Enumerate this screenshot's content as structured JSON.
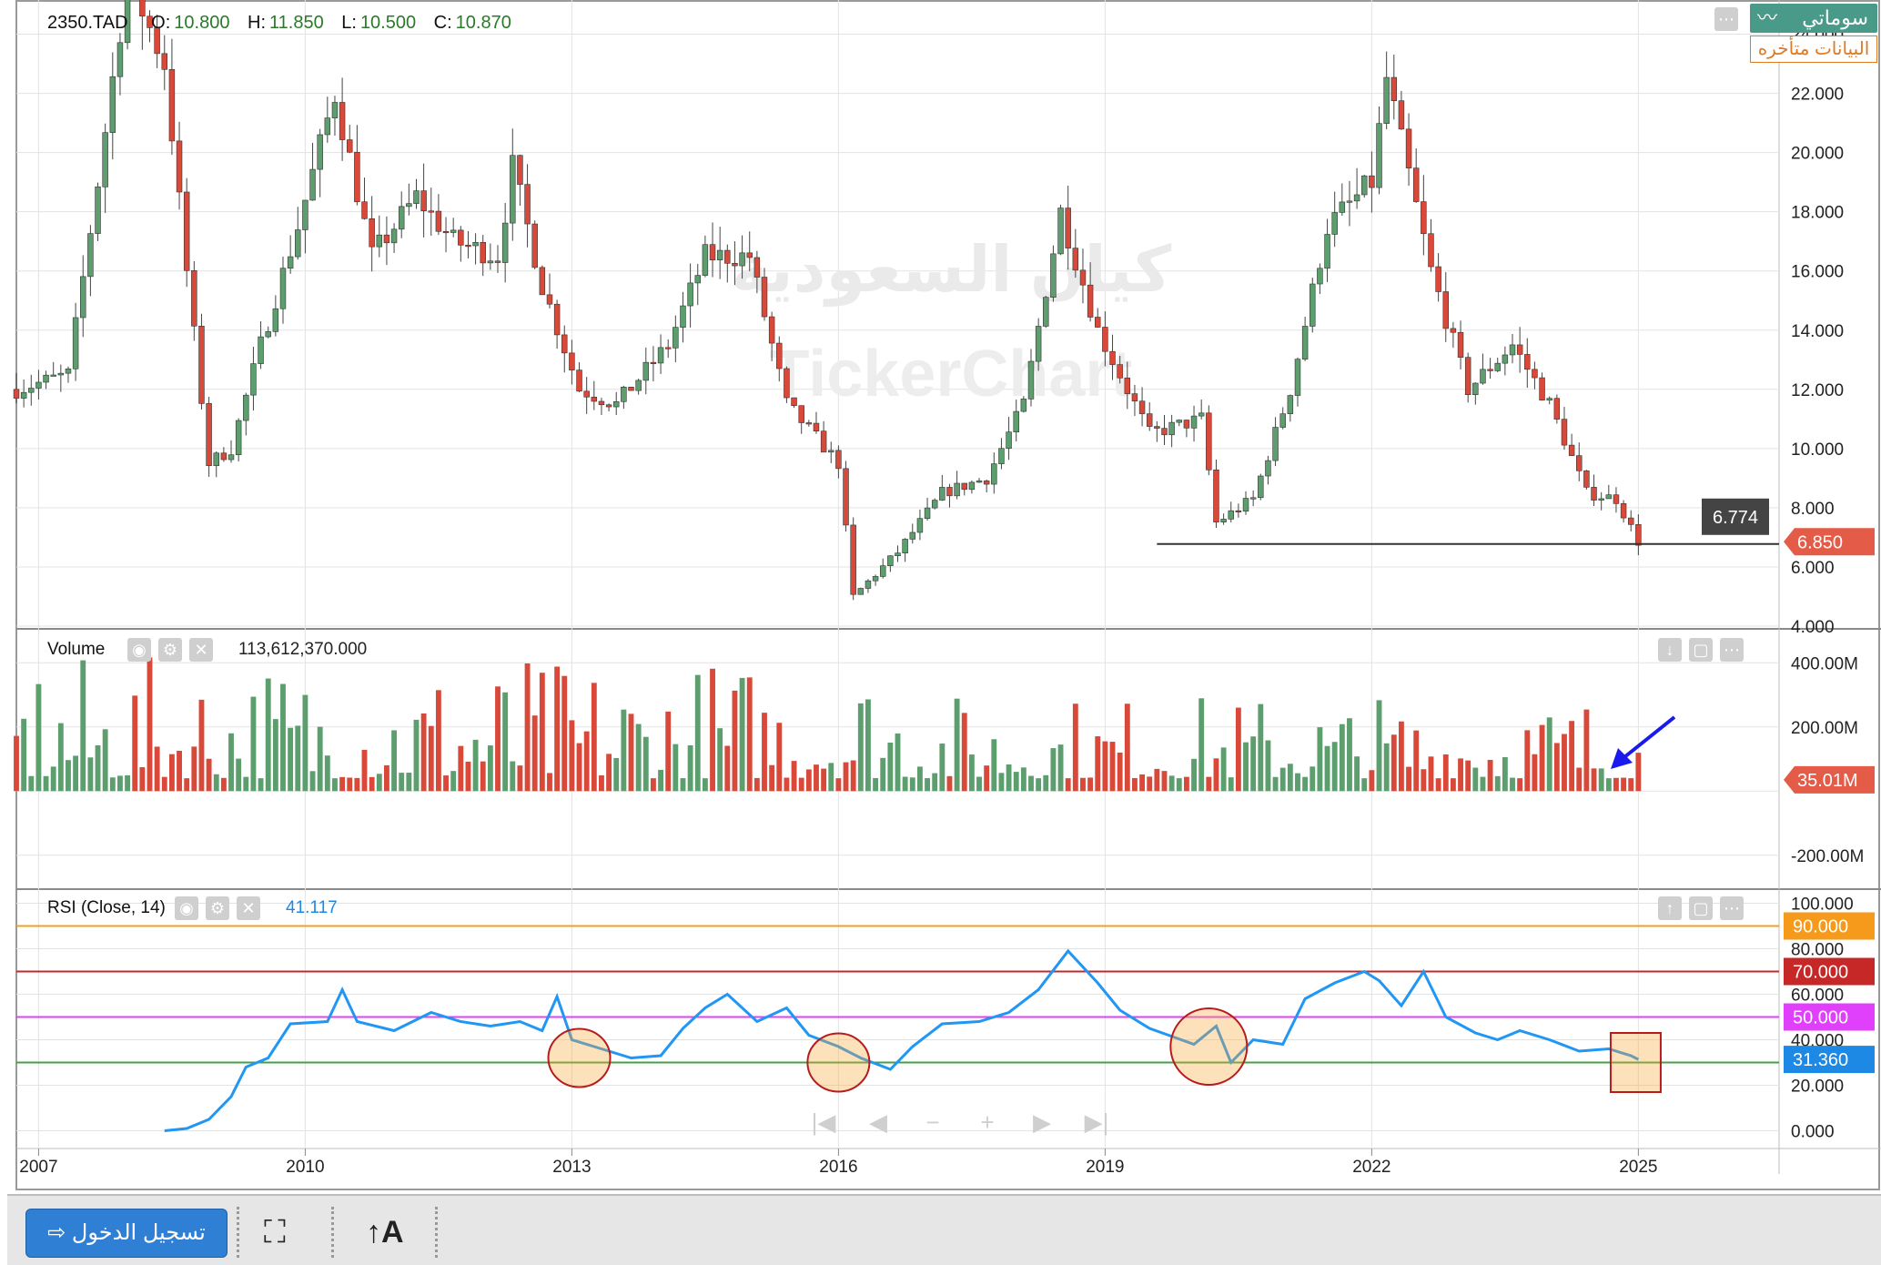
{
  "header": {
    "symbol": "2350.TAD",
    "ohlc": [
      {
        "key": "O:",
        "value": "10.800"
      },
      {
        "key": "H:",
        "value": "11.850"
      },
      {
        "key": "L:",
        "value": "10.500"
      },
      {
        "key": "C:",
        "value": "10.870"
      }
    ]
  },
  "brand": {
    "name": "سوماتي",
    "delayed": "البيانات متأخره"
  },
  "watermark": {
    "arabic": "كيان السعودية",
    "latin": "TickerChart"
  },
  "colors": {
    "up": "#5c9e6e",
    "down": "#d8493a",
    "rsi": "#2196f3",
    "grid": "#e3e3e3"
  },
  "price_panel": {
    "axis_labels": [
      "24.000",
      "22.000",
      "20.000",
      "18.000",
      "16.000",
      "14.000",
      "12.000",
      "10.000",
      "8.000",
      "6.000",
      "4.000"
    ],
    "last_price_label": "6.850",
    "support_label": "6.774",
    "last_price_color": "#e45b48",
    "support_label_color": "#444444"
  },
  "volume_panel": {
    "label": "Volume",
    "value": "113,612,370.000",
    "axis_labels": [
      "400.00M",
      "200.00M",
      "-200.00M"
    ],
    "last_label": "35.01M"
  },
  "rsi_panel": {
    "label": "RSI  (Close, 14)",
    "value": "41.117",
    "axis_labels": [
      "100.000",
      "80.000",
      "60.000",
      "40.000",
      "20.000",
      "0.000"
    ],
    "levels": [
      {
        "value": 90,
        "label": "90.000",
        "color": "#f0a020",
        "bg": "#f59a1a"
      },
      {
        "value": 70,
        "label": "70.000",
        "color": "#c62828",
        "bg": "#c62828"
      },
      {
        "value": 50,
        "label": "50.000",
        "color": "#e040fb",
        "bg": "#e040fb"
      },
      {
        "value": 30,
        "label": "31.360",
        "color": "#43a047",
        "bg": "#1e88e5"
      }
    ]
  },
  "x_axis": {
    "labels": [
      {
        "year": 2007,
        "label": "2007"
      },
      {
        "year": 2010,
        "label": "2010"
      },
      {
        "year": 2013,
        "label": "2013"
      },
      {
        "year": 2016,
        "label": "2016"
      },
      {
        "year": 2019,
        "label": "2019"
      },
      {
        "year": 2022,
        "label": "2022"
      },
      {
        "year": 2025,
        "label": "2025"
      }
    ]
  },
  "chart_data": [
    {
      "type": "candlestick",
      "title": "2350.TAD",
      "ylim": [
        4,
        25
      ],
      "x_range": [
        "2006-10",
        "2026-08"
      ],
      "anchors": [
        [
          "2006-10",
          12.0
        ],
        [
          "2007-05",
          12.5
        ],
        [
          "2007-09",
          19
        ],
        [
          "2008-01",
          26
        ],
        [
          "2008-06",
          23
        ],
        [
          "2008-09",
          16
        ],
        [
          "2008-12",
          9.5
        ],
        [
          "2009-03",
          10.0
        ],
        [
          "2009-07",
          13.5
        ],
        [
          "2009-12",
          17.5
        ],
        [
          "2010-05",
          22.0
        ],
        [
          "2010-10",
          16.5
        ],
        [
          "2011-04",
          18.5
        ],
        [
          "2011-09",
          17.0
        ],
        [
          "2012-03",
          16.5
        ],
        [
          "2012-05",
          19.5
        ],
        [
          "2012-09",
          15.5
        ],
        [
          "2013-02",
          12.0
        ],
        [
          "2013-07",
          11.5
        ],
        [
          "2014-02",
          13.5
        ],
        [
          "2014-07",
          16.5
        ],
        [
          "2015-01",
          16.5
        ],
        [
          "2015-06",
          11.5
        ],
        [
          "2016-01",
          9.5
        ],
        [
          "2016-03",
          5.0
        ],
        [
          "2016-09",
          6.5
        ],
        [
          "2017-03",
          8.5
        ],
        [
          "2017-09",
          9.0
        ],
        [
          "2018-02",
          11.5
        ],
        [
          "2018-07",
          18.0
        ],
        [
          "2018-12",
          14.0
        ],
        [
          "2019-07",
          10.5
        ],
        [
          "2020-02",
          11.0
        ],
        [
          "2020-04",
          7.5
        ],
        [
          "2020-09",
          8.3
        ],
        [
          "2021-02",
          12.0
        ],
        [
          "2021-07",
          17.5
        ],
        [
          "2022-01",
          19.0
        ],
        [
          "2022-03",
          22.5
        ],
        [
          "2022-09",
          16.0
        ],
        [
          "2023-02",
          12.0
        ],
        [
          "2023-08",
          13.5
        ],
        [
          "2024-01",
          11.5
        ],
        [
          "2024-06",
          8.5
        ],
        [
          "2024-10",
          8.3
        ],
        [
          "2025-01",
          6.85
        ]
      ],
      "support_line": {
        "from": "2019-08",
        "to": "2026-08",
        "value": 6.774
      }
    },
    {
      "type": "bar",
      "title": "Volume",
      "ylim": [
        -300,
        500
      ],
      "unit": "M"
    },
    {
      "type": "line",
      "title": "RSI (Close, 14)",
      "ylim": [
        -5,
        105
      ],
      "points": [
        [
          "2008-06",
          0
        ],
        [
          "2008-09",
          1
        ],
        [
          "2008-12",
          5
        ],
        [
          "2009-03",
          15
        ],
        [
          "2009-05",
          28
        ],
        [
          "2009-08",
          32
        ],
        [
          "2009-11",
          47
        ],
        [
          "2010-04",
          48
        ],
        [
          "2010-06",
          62
        ],
        [
          "2010-08",
          48
        ],
        [
          "2011-01",
          44
        ],
        [
          "2011-06",
          52
        ],
        [
          "2011-10",
          48
        ],
        [
          "2012-02",
          46
        ],
        [
          "2012-06",
          48
        ],
        [
          "2012-09",
          44
        ],
        [
          "2012-11",
          59
        ],
        [
          "2013-01",
          40
        ],
        [
          "2013-06",
          35
        ],
        [
          "2013-09",
          32
        ],
        [
          "2014-01",
          33
        ],
        [
          "2014-04",
          45
        ],
        [
          "2014-07",
          54
        ],
        [
          "2014-10",
          60
        ],
        [
          "2015-02",
          48
        ],
        [
          "2015-06",
          54
        ],
        [
          "2015-09",
          42
        ],
        [
          "2016-01",
          37
        ],
        [
          "2016-04",
          32
        ],
        [
          "2016-08",
          27
        ],
        [
          "2016-11",
          37
        ],
        [
          "2017-03",
          47
        ],
        [
          "2017-08",
          48
        ],
        [
          "2017-12",
          52
        ],
        [
          "2018-04",
          62
        ],
        [
          "2018-08",
          79
        ],
        [
          "2018-12",
          65
        ],
        [
          "2019-03",
          53
        ],
        [
          "2019-07",
          45
        ],
        [
          "2020-01",
          38
        ],
        [
          "2020-04",
          46
        ],
        [
          "2020-06",
          30
        ],
        [
          "2020-09",
          40
        ],
        [
          "2021-01",
          38
        ],
        [
          "2021-04",
          58
        ],
        [
          "2021-08",
          65
        ],
        [
          "2021-12",
          70
        ],
        [
          "2022-02",
          66
        ],
        [
          "2022-05",
          55
        ],
        [
          "2022-08",
          70
        ],
        [
          "2022-11",
          50
        ],
        [
          "2023-03",
          43
        ],
        [
          "2023-06",
          40
        ],
        [
          "2023-09",
          44
        ],
        [
          "2024-01",
          40
        ],
        [
          "2024-05",
          35
        ],
        [
          "2024-09",
          36
        ],
        [
          "2024-12",
          33
        ],
        [
          "2025-01",
          31.36
        ]
      ]
    }
  ]
}
